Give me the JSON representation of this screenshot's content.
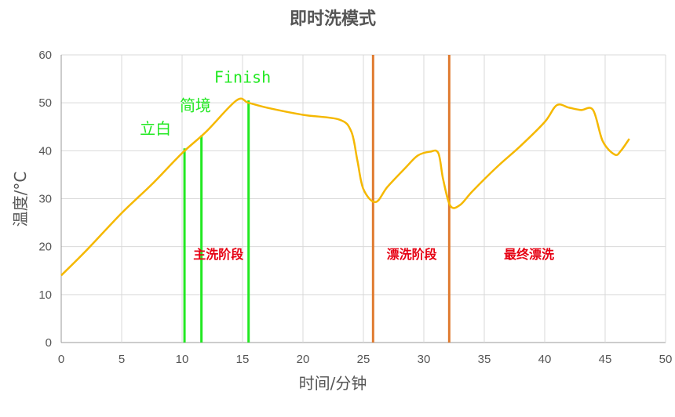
{
  "chart_data": {
    "type": "line",
    "title": "即时洗模式",
    "xlabel": "时间/分钟",
    "ylabel": "温度/°C",
    "xlim": [
      0,
      50
    ],
    "ylim": [
      0,
      60
    ],
    "xticks": [
      0,
      5,
      10,
      15,
      20,
      25,
      30,
      35,
      40,
      45,
      50
    ],
    "yticks": [
      0,
      10,
      20,
      30,
      40,
      50,
      60
    ],
    "grid": true,
    "colors": {
      "curve": "#f5b800",
      "marker_green": "#22e822",
      "marker_orange": "#e07b30",
      "phase_text": "#e60012"
    },
    "series": [
      {
        "x": [
          0,
          2,
          5,
          7.5,
          10,
          12,
          14.5,
          15.5,
          17,
          20,
          23,
          24,
          24.5,
          25,
          26,
          27,
          28.5,
          29.5,
          30.5,
          31.2,
          31.6,
          32.2,
          33,
          34,
          36,
          38,
          40,
          41,
          42,
          43,
          44,
          44.8,
          45.8,
          46.3,
          47
        ],
        "y": [
          14,
          19,
          27,
          33,
          39.5,
          44,
          50.5,
          50,
          49,
          47.5,
          46.5,
          44,
          38,
          32,
          29.3,
          32.5,
          36.5,
          39,
          39.8,
          39.5,
          34,
          28.5,
          28.7,
          31.5,
          36.5,
          41,
          46,
          49.5,
          49,
          48.5,
          48.5,
          42,
          39.2,
          40,
          42.5
        ]
      }
    ],
    "vertical_markers": [
      {
        "x": 10.2,
        "y_top": 40.5,
        "color": "green",
        "label": "立白",
        "label_x": 7.8,
        "label_y": 43.5
      },
      {
        "x": 11.6,
        "y_top": 43.2,
        "color": "green",
        "label": "简境",
        "label_x": 11.1,
        "label_y": 48.3
      },
      {
        "x": 15.5,
        "y_top": 50.5,
        "color": "green",
        "label": "Finish",
        "label_x": 15,
        "label_y": 54.2
      },
      {
        "x": 25.8,
        "y_top": 60,
        "color": "orange"
      },
      {
        "x": 32.1,
        "y_top": 60,
        "color": "orange"
      }
    ],
    "phase_labels": [
      {
        "text": "主洗阶段",
        "x": 13,
        "y": 17.5
      },
      {
        "text": "漂洗阶段",
        "x": 29,
        "y": 17.5
      },
      {
        "text": "最终漂洗",
        "x": 38.7,
        "y": 17.5
      }
    ]
  }
}
